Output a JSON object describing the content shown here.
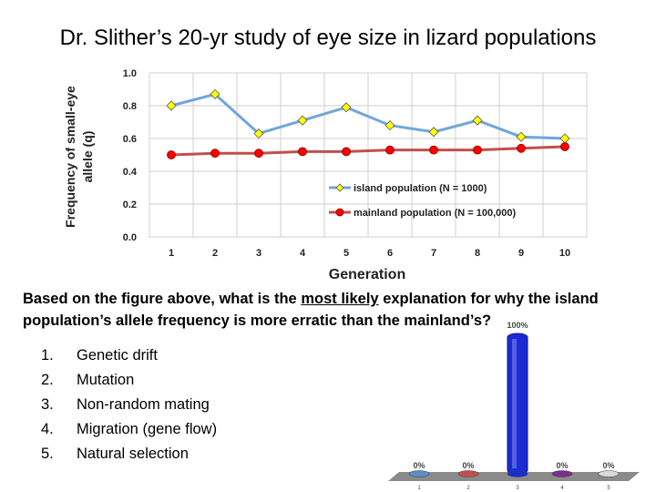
{
  "slide": {
    "title": "Dr. Slither’s 20-yr study of eye size in lizard populations"
  },
  "chart_data": [
    {
      "type": "line",
      "x": [
        1,
        2,
        3,
        4,
        5,
        6,
        7,
        8,
        9,
        10
      ],
      "series": [
        {
          "name": "island population (N = 1000)",
          "color": "#6fa6dc",
          "marker_color": "#ffff00",
          "values": [
            0.8,
            0.87,
            0.63,
            0.71,
            0.79,
            0.68,
            0.64,
            0.71,
            0.61,
            0.6
          ]
        },
        {
          "name": "mainland population (N = 100,000)",
          "color": "#c0504d",
          "marker_color": "#ff0000",
          "values": [
            0.5,
            0.51,
            0.51,
            0.52,
            0.52,
            0.53,
            0.53,
            0.53,
            0.54,
            0.55
          ]
        }
      ],
      "xlabel": "Generation",
      "ylabel_lines": [
        "Frequency of small-eye",
        "allele (q)"
      ],
      "ylim": [
        0,
        1.0
      ],
      "yticks": [
        "0.0",
        "0.2",
        "0.4",
        "0.6",
        "0.8",
        "1.0"
      ],
      "grid": true,
      "legend": "bottom-right"
    },
    {
      "type": "bar",
      "categories": [
        "1",
        "2",
        "3",
        "4",
        "5"
      ],
      "values": [
        0,
        0,
        100,
        0,
        0
      ],
      "value_labels": [
        "0%",
        "0%",
        "100%",
        "0%",
        "0%"
      ],
      "colors": [
        "#5b8fc7",
        "#c0504d",
        "#1a2bd6",
        "#7b2e8e",
        "#d9d9d9"
      ],
      "ylim": [
        0,
        100
      ]
    }
  ],
  "question": {
    "before": "Based on the figure above, what is the ",
    "underlined": "most likely",
    "after": " explanation for why the island population’s allele frequency is more erratic than the mainland’s?"
  },
  "options": [
    {
      "num": "1.",
      "text": "Genetic drift"
    },
    {
      "num": "2.",
      "text": "Mutation"
    },
    {
      "num": "3.",
      "text": "Non-random mating"
    },
    {
      "num": "4.",
      "text": "Migration (gene flow)"
    },
    {
      "num": "5.",
      "text": "Natural selection"
    }
  ]
}
